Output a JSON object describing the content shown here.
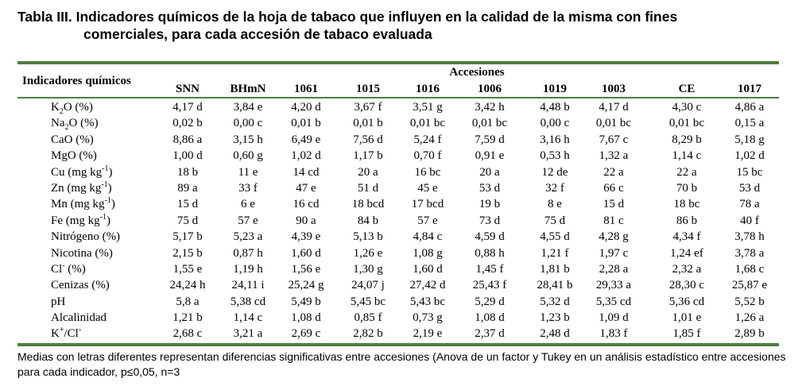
{
  "title": {
    "line1": "Tabla III. Indicadores químicos de la hoja de tabaco que influyen en la calidad de la misma con fines",
    "line2": "comerciales, para cada accesión de tabaco evaluada"
  },
  "header": {
    "row_label": "Indicadores químicos",
    "group_label": "Accesiones",
    "columns": [
      "SNN",
      "BHmN",
      "1061",
      "1015",
      "1016",
      "1006",
      "1019",
      "1003",
      "CE",
      "1017"
    ]
  },
  "rows": [
    {
      "label": {
        "pre": "K",
        "sub": "2",
        "post": "O (%)",
        "sup": "",
        "tail": ""
      },
      "values": [
        "4,17 d",
        "3,84 e",
        "4,20 d",
        "3,67 f",
        "3,51 g",
        "3,42 h",
        "4,48 b",
        "4,17 d",
        "4,30 c",
        "4,86 a"
      ]
    },
    {
      "label": {
        "pre": "Na",
        "sub": "2",
        "post": "O (%)",
        "sup": "",
        "tail": ""
      },
      "values": [
        "0,02 b",
        "0,00 c",
        "0,01 b",
        "0,01 b",
        "0,01 bc",
        "0,01 bc",
        "0,00 c",
        "0,01 bc",
        "0,01 bc",
        "0,15 a"
      ]
    },
    {
      "label": {
        "pre": "CaO (%)",
        "sub": "",
        "post": "",
        "sup": "",
        "tail": ""
      },
      "values": [
        "8,86 a",
        "3,15 h",
        "6,49 e",
        "7,56 d",
        "5,24 f",
        "7,59 d",
        "3,16 h",
        "7,67 c",
        "8,29 b",
        "5,18 g"
      ]
    },
    {
      "label": {
        "pre": "MgO (%)",
        "sub": "",
        "post": "",
        "sup": "",
        "tail": ""
      },
      "values": [
        "1,00 d",
        "0,60 g",
        "1,02 d",
        "1,17 b",
        "0,70 f",
        "0,91 e",
        "0,53 h",
        "1,32 a",
        "1,14 c",
        "1,02 d"
      ]
    },
    {
      "label": {
        "pre": "Cu (mg kg",
        "sub": "",
        "post": "",
        "sup": "-1",
        "tail": ")"
      },
      "values": [
        "18 b",
        "11 e",
        "14 cd",
        "20 a",
        "16 bc",
        "20 a",
        "12 de",
        "22 a",
        "22 a",
        "15 bc"
      ]
    },
    {
      "label": {
        "pre": "Zn (mg kg",
        "sub": "",
        "post": "",
        "sup": "-1",
        "tail": ")"
      },
      "values": [
        "89 a",
        "33 f",
        "47 e",
        "51 d",
        "45 e",
        "53 d",
        "32 f",
        "66 c",
        "70 b",
        "53 d"
      ]
    },
    {
      "label": {
        "pre": "Mn (mg kg",
        "sub": "",
        "post": "",
        "sup": "-1",
        "tail": ")"
      },
      "values": [
        "15 d",
        "6 e",
        "16 cd",
        "18 bcd",
        "17 bcd",
        "19 b",
        "8 e",
        "15 d",
        "18 bc",
        "78 a"
      ]
    },
    {
      "label": {
        "pre": "Fe (mg kg",
        "sub": "",
        "post": "",
        "sup": "-1",
        "tail": ")"
      },
      "values": [
        "75 d",
        "57 e",
        "90 a",
        "84 b",
        "57 e",
        "73 d",
        "75 d",
        "81 c",
        "86 b",
        "40 f"
      ]
    },
    {
      "label": {
        "pre": "Nitrógeno (%)",
        "sub": "",
        "post": "",
        "sup": "",
        "tail": ""
      },
      "values": [
        "5,17 b",
        "5,23 a",
        "4,39 e",
        "5,13 b",
        "4,84 c",
        "4,59 d",
        "4,55 d",
        "4,28 g",
        "4,34 f",
        "3,78 h"
      ]
    },
    {
      "label": {
        "pre": "Nicotina (%)",
        "sub": "",
        "post": "",
        "sup": "",
        "tail": ""
      },
      "values": [
        "2,15 b",
        "0,87 h",
        "1,60 d",
        "1,26 e",
        "1,08 g",
        "0,88 h",
        "1,21 f",
        "1,97 c",
        "1,24 ef",
        "3,78 a"
      ]
    },
    {
      "label": {
        "pre": "Cl",
        "sub": "",
        "post": "",
        "sup": "-",
        "tail": " (%)"
      },
      "values": [
        "1,55 e",
        "1,19 h",
        "1,56 e",
        "1,30 g",
        "1,60 d",
        "1,45 f",
        "1,81 b",
        "2,28 a",
        "2,32 a",
        "1,68 c"
      ]
    },
    {
      "label": {
        "pre": "Cenizas (%)",
        "sub": "",
        "post": "",
        "sup": "",
        "tail": ""
      },
      "values": [
        "24,24 h",
        "24,11 i",
        "25,24 g",
        "24,07 j",
        "27,42 d",
        "25,43 f",
        "28,41 b",
        "29,33 a",
        "28,30 c",
        "25,87 e"
      ]
    },
    {
      "label": {
        "pre": "pH",
        "sub": "",
        "post": "",
        "sup": "",
        "tail": ""
      },
      "values": [
        "5,8 a",
        "5,38 cd",
        "5,49 b",
        "5,45 bc",
        "5,43 bc",
        "5,29 d",
        "5,32 d",
        "5,35 cd",
        "5,36 cd",
        "5,52 b"
      ]
    },
    {
      "label": {
        "pre": "Alcalinidad",
        "sub": "",
        "post": "",
        "sup": "",
        "tail": ""
      },
      "values": [
        "1,21 b",
        "1,14 c",
        "1,08 d",
        "0,85 f",
        "0,73 g",
        "1,08 d",
        "1,23 b",
        "1,09 d",
        "1,01 e",
        "1,26 a"
      ]
    },
    {
      "label": {
        "pre": "K",
        "sub": "",
        "post": "",
        "sup": "+",
        "tail": "/Cl",
        "sup2": "-"
      },
      "values": [
        "2,68 c",
        "3,21 a",
        "2,69 c",
        "2,82 b",
        "2,19 e",
        "2,37 d",
        "2,48 d",
        "1,83 f",
        "1,85 f",
        "2,89 b"
      ]
    }
  ],
  "footer": {
    "note": "Medias con letras diferentes representan diferencias significativas entre accesiones (Anova de un factor y Tukey en un análisis estadístico entre accesiones para cada indicador, p≤0,05, n=3"
  },
  "colors": {
    "rule": "#4f7d3f",
    "text": "#000000",
    "background": "#ffffff"
  }
}
